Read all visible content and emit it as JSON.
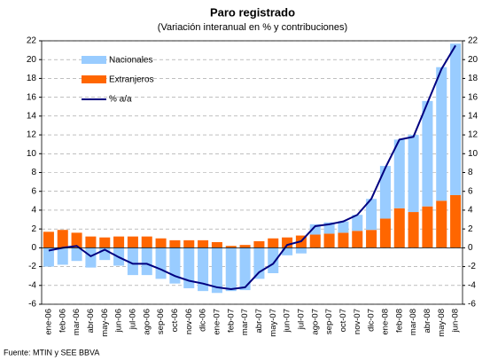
{
  "chart_data": {
    "type": "stacked_bar_line",
    "title": "Paro registrado",
    "subtitle": "(Variación interanual en % y contribuciones)",
    "source": "Fuente: MTIN y SEE BBVA",
    "categories": [
      "ene-06",
      "feb-06",
      "mar-06",
      "abr-06",
      "may-06",
      "jun-06",
      "jul-06",
      "ago-06",
      "sep-06",
      "oct-06",
      "nov-06",
      "dic-06",
      "ene-07",
      "feb-07",
      "mar-07",
      "abr-07",
      "may-07",
      "jun-07",
      "jul-07",
      "ago-07",
      "sep-07",
      "oct-07",
      "nov-07",
      "dic-07",
      "ene-08",
      "feb-08",
      "mar-08",
      "abr-08",
      "may-08",
      "jun-08"
    ],
    "series": [
      {
        "name": "Nacionales",
        "color": "#99ccff",
        "kind": "bar",
        "values": [
          -2.0,
          -1.8,
          -1.4,
          -2.1,
          -1.3,
          -1.9,
          -2.9,
          -2.9,
          -3.3,
          -3.8,
          -4.3,
          -4.6,
          -4.8,
          -4.6,
          -4.5,
          -3.3,
          -2.7,
          -0.8,
          -0.6,
          1.1,
          1.2,
          1.2,
          1.7,
          3.3,
          5.6,
          7.3,
          8.2,
          11.2,
          14.2,
          16.1
        ]
      },
      {
        "name": "Extranjeros",
        "color": "#ff6600",
        "kind": "bar",
        "values": [
          1.7,
          1.9,
          1.6,
          1.2,
          1.1,
          1.2,
          1.2,
          1.2,
          1.0,
          0.8,
          0.8,
          0.8,
          0.6,
          0.2,
          0.3,
          0.7,
          1.0,
          1.1,
          1.3,
          1.4,
          1.5,
          1.6,
          1.8,
          1.9,
          3.1,
          4.2,
          3.8,
          4.4,
          5.0,
          5.6
        ]
      },
      {
        "name": "% a/a",
        "color": "#000080",
        "kind": "line",
        "values": [
          -0.3,
          0.0,
          0.2,
          -0.9,
          -0.2,
          -1.0,
          -1.7,
          -1.7,
          -2.3,
          -3.0,
          -3.5,
          -3.8,
          -4.2,
          -4.4,
          -4.2,
          -2.6,
          -1.7,
          0.3,
          0.7,
          2.3,
          2.5,
          2.8,
          3.5,
          5.2,
          8.5,
          11.5,
          11.8,
          15.4,
          19.0,
          21.5
        ]
      }
    ],
    "ylim": [
      -6,
      22
    ],
    "yticks": [
      -6,
      -4,
      -2,
      0,
      2,
      4,
      6,
      8,
      10,
      12,
      14,
      16,
      18,
      20,
      22
    ],
    "y2lim": [
      -6,
      22
    ],
    "y2ticks": [
      -6,
      -4,
      -2,
      0,
      2,
      4,
      6,
      8,
      10,
      12,
      14,
      16,
      18,
      20,
      22
    ],
    "grid": true,
    "legend": "top-left"
  }
}
